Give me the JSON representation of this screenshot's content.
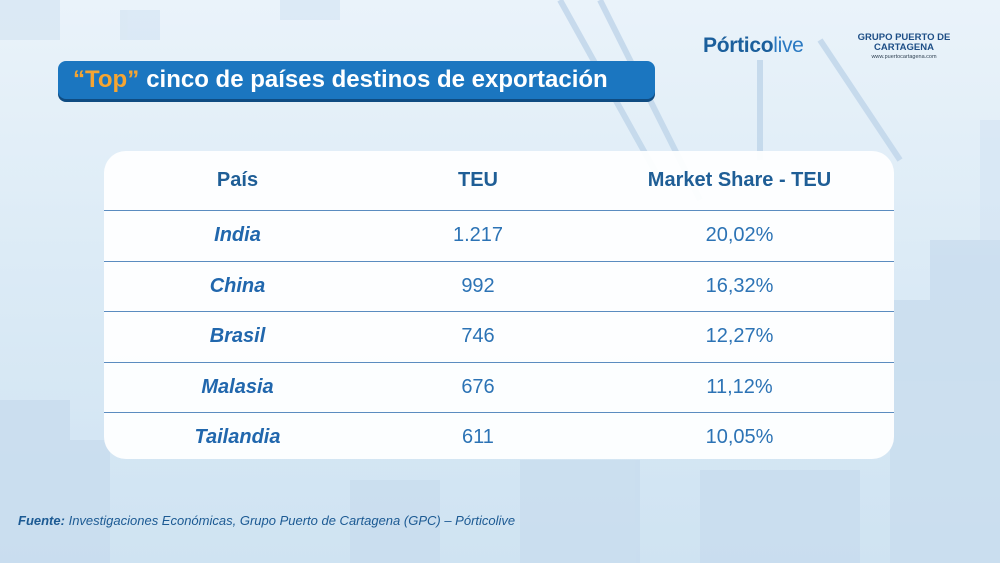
{
  "brand": {
    "name_bold": "Pórtico",
    "name_light": "live"
  },
  "gpc": {
    "line1": "GRUPO PUERTO DE",
    "line2": "CARTAGENA",
    "url": "www.puertocartagena.com"
  },
  "title": {
    "highlight": "“Top”",
    "rest": "cinco de países destinos de exportación"
  },
  "source": {
    "label": "Fuente:",
    "text": "Investigaciones Económicas, Grupo Puerto de Cartagena (GPC) – Pórticolive"
  },
  "colors": {
    "accent": "#1b76c0",
    "highlight": "#f6a531",
    "text": "#2c73b5"
  },
  "chart_data": {
    "type": "table",
    "columns": [
      "País",
      "TEU",
      "Market Share - TEU"
    ],
    "rows": [
      [
        "India",
        "1.217",
        "20,02%"
      ],
      [
        "China",
        "992",
        "16,32%"
      ],
      [
        "Brasil",
        "746",
        "12,27%"
      ],
      [
        "Malasia",
        "676",
        "11,12%"
      ],
      [
        "Tailandia",
        "611",
        "10,05%"
      ]
    ]
  }
}
